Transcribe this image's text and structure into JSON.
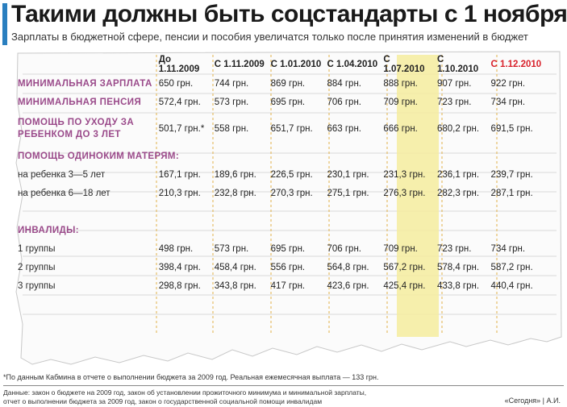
{
  "header": {
    "title": "Такими должны быть соцстандарты с 1 ноября",
    "subtitle": "Зарплаты в бюджетной сфере, пенсии и пособия увеличатся только после принятия изменений в бюджет"
  },
  "table": {
    "columns": [
      "До 1.11.2009",
      "С 1.11.2009",
      "С 1.01.2010",
      "С 1.04.2010",
      "С 1.07.2010",
      "С 1.10.2010",
      "С 1.12.2010"
    ],
    "rows": [
      {
        "label": "МИНИМАЛЬНАЯ ЗАРПЛАТА",
        "values": [
          "650 грн.",
          "744 грн.",
          "869 грн.",
          "884 грн.",
          "888 грн.",
          "907 грн.",
          "922 грн."
        ]
      },
      {
        "label": "МИНИМАЛЬНАЯ ПЕНСИЯ",
        "values": [
          "572,4 грн.",
          "573 грн.",
          "695 грн.",
          "706 грн.",
          "709 грн.",
          "723 грн.",
          "734 грн."
        ]
      },
      {
        "label": "ПОМОЩЬ ПО УХОДУ ЗА РЕБЕНКОМ ДО 3 ЛЕТ",
        "values": [
          "501,7 грн.*",
          "558 грн.",
          "651,7 грн.",
          "663 грн.",
          "666 грн.",
          "680,2 грн.",
          "691,5 грн."
        ]
      }
    ],
    "single_mothers": {
      "heading": "ПОМОЩЬ ОДИНОКИМ МАТЕРЯМ:",
      "rows": [
        {
          "label": "на ребенка 3—5 лет",
          "values": [
            "167,1 грн.",
            "189,6 грн.",
            "226,5 грн.",
            "230,1 грн.",
            "231,3 грн.",
            "236,1 грн.",
            "239,7 грн."
          ]
        },
        {
          "label": "на ребенка 6—18 лет",
          "values": [
            "210,3 грн.",
            "232,8 грн.",
            "270,3 грн.",
            "275,1 грн.",
            "276,3 грн.",
            "282,3 грн.",
            "287,1 грн."
          ]
        }
      ]
    },
    "disabled": {
      "heading": "ИНВАЛИДЫ:",
      "rows": [
        {
          "label": "1 группы",
          "values": [
            "498 грн.",
            "573 грн.",
            "695 грн.",
            "706 грн.",
            "709 грн.",
            "723 грн.",
            "734 грн."
          ]
        },
        {
          "label": "2 группы",
          "values": [
            "398,4 грн.",
            "458,4 грн.",
            "556 грн.",
            "564,8 грн.",
            "567,2 грн.",
            "578,4 грн.",
            "587,2 грн."
          ]
        },
        {
          "label": "3 группы",
          "values": [
            "298,8 грн.",
            "343,8 грн.",
            "417 грн.",
            "423,6 грн.",
            "425,4 грн.",
            "433,8 грн.",
            "440,4 грн."
          ]
        }
      ]
    }
  },
  "footnote": "*По данным Кабмина в отчете о выполнении бюджета за 2009 год. Реальная ежемесячная выплата — 133 грн.",
  "source_line1": "Данные: закон о бюджете на 2009 год, закон об установлении прожиточного минимума и минимальной зарплаты,",
  "source_line2": "отчет о выполнении бюджета за 2009 год, закон о государственной социальной помощи инвалидам",
  "credit": "«Сегодня» | А.И.",
  "colors": {
    "accent": "#2a7fbf",
    "section": "#9a4a8a",
    "highlight_header": "#d8202a",
    "column_highlight": "#f4ec9d"
  }
}
